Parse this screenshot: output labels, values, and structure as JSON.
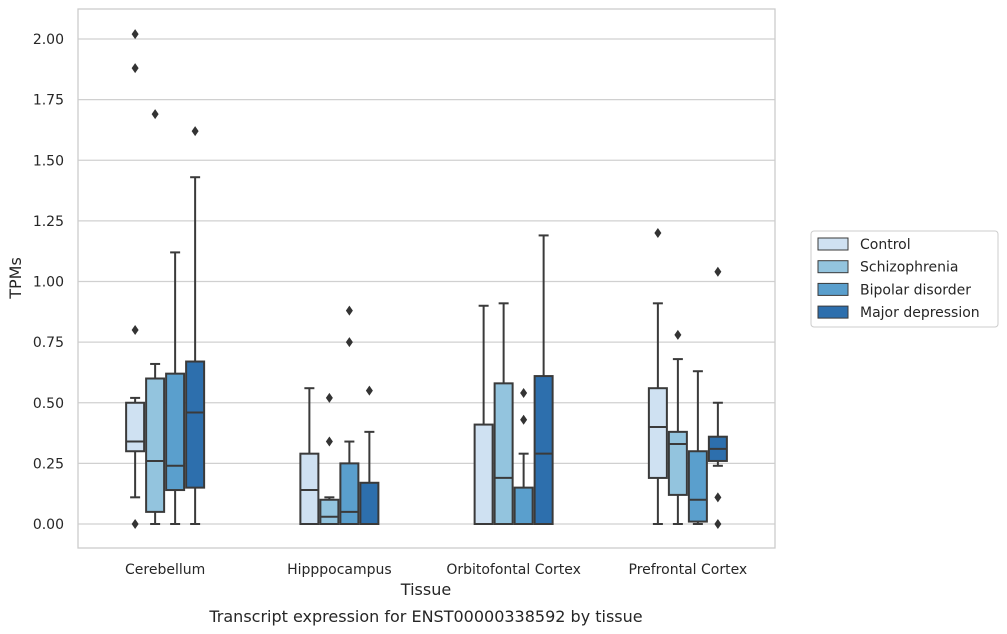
{
  "chart_data": {
    "type": "box",
    "title": "",
    "caption": "Transcript expression for ENST00000338592 by tissue",
    "xlabel": "Tissue",
    "ylabel": "TPMs",
    "ylim": [
      -0.1,
      2.12
    ],
    "yticks": [
      "0.00",
      "0.25",
      "0.50",
      "0.75",
      "1.00",
      "1.25",
      "1.50",
      "1.75",
      "2.00"
    ],
    "ytick_values": [
      0,
      0.25,
      0.5,
      0.75,
      1.0,
      1.25,
      1.5,
      1.75,
      2.0
    ],
    "grid": "horizontal",
    "legend_position": "right",
    "categories": [
      "Cerebellum",
      "Hipppocampus",
      "Orbitofontal Cortex",
      "Prefrontal Cortex"
    ],
    "series": [
      {
        "name": "Control",
        "color": "#cfe1f2",
        "boxes": [
          {
            "whislo": 0.11,
            "q1": 0.3,
            "med": 0.34,
            "q3": 0.5,
            "whishi": 0.52,
            "fliers": [
              2.02,
              1.88,
              0.8,
              0.0
            ]
          },
          {
            "whislo": 0.0,
            "q1": 0.0,
            "med": 0.14,
            "q3": 0.29,
            "whishi": 0.56,
            "fliers": []
          },
          {
            "whislo": 0.0,
            "q1": 0.0,
            "med": 0.0,
            "q3": 0.41,
            "whishi": 0.9,
            "fliers": []
          },
          {
            "whislo": 0.0,
            "q1": 0.19,
            "med": 0.4,
            "q3": 0.56,
            "whishi": 0.91,
            "fliers": [
              1.2
            ]
          }
        ]
      },
      {
        "name": "Schizophrenia",
        "color": "#93c4de",
        "boxes": [
          {
            "whislo": 0.0,
            "q1": 0.05,
            "med": 0.26,
            "q3": 0.6,
            "whishi": 0.66,
            "fliers": [
              1.69
            ]
          },
          {
            "whislo": 0.0,
            "q1": 0.0,
            "med": 0.03,
            "q3": 0.1,
            "whishi": 0.11,
            "fliers": [
              0.52,
              0.34
            ]
          },
          {
            "whislo": 0.0,
            "q1": 0.0,
            "med": 0.19,
            "q3": 0.58,
            "whishi": 0.91,
            "fliers": []
          },
          {
            "whislo": 0.0,
            "q1": 0.12,
            "med": 0.33,
            "q3": 0.38,
            "whishi": 0.68,
            "fliers": [
              0.78
            ]
          }
        ]
      },
      {
        "name": "Bipolar disorder",
        "color": "#5a9fcd",
        "boxes": [
          {
            "whislo": 0.0,
            "q1": 0.14,
            "med": 0.24,
            "q3": 0.62,
            "whishi": 1.12,
            "fliers": []
          },
          {
            "whislo": 0.0,
            "q1": 0.0,
            "med": 0.05,
            "q3": 0.25,
            "whishi": 0.34,
            "fliers": [
              0.88,
              0.75
            ]
          },
          {
            "whislo": 0.0,
            "q1": 0.0,
            "med": 0.0,
            "q3": 0.15,
            "whishi": 0.29,
            "fliers": [
              0.54,
              0.43
            ]
          },
          {
            "whislo": 0.0,
            "q1": 0.01,
            "med": 0.1,
            "q3": 0.3,
            "whishi": 0.63,
            "fliers": []
          }
        ]
      },
      {
        "name": "Major depression",
        "color": "#2d6fad",
        "boxes": [
          {
            "whislo": 0.0,
            "q1": 0.15,
            "med": 0.46,
            "q3": 0.67,
            "whishi": 1.43,
            "fliers": [
              1.62
            ]
          },
          {
            "whislo": 0.0,
            "q1": 0.0,
            "med": 0.0,
            "q3": 0.17,
            "whishi": 0.38,
            "fliers": [
              0.55
            ]
          },
          {
            "whislo": 0.0,
            "q1": 0.0,
            "med": 0.29,
            "q3": 0.61,
            "whishi": 1.19,
            "fliers": []
          },
          {
            "whislo": 0.24,
            "q1": 0.26,
            "med": 0.31,
            "q3": 0.36,
            "whishi": 0.5,
            "fliers": [
              1.04,
              0.11,
              0.0
            ]
          }
        ]
      }
    ]
  }
}
